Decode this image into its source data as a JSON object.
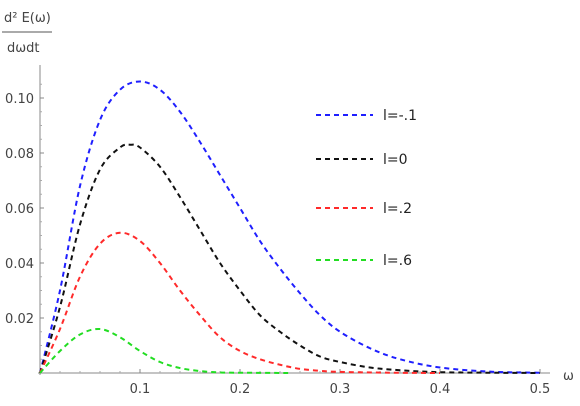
{
  "chart_data": {
    "type": "line",
    "ylabel_top": "d² E(ω)",
    "ylabel_bottom": "dωdt",
    "xlabel": "ω",
    "xlim": [
      0,
      0.5
    ],
    "ylim": [
      0,
      0.112
    ],
    "xticks": [
      0.1,
      0.2,
      0.3,
      0.4,
      0.5
    ],
    "xtick_labels": [
      "0.1",
      "0.2",
      "0.3",
      "0.4",
      "0.5"
    ],
    "yticks": [
      0.02,
      0.04,
      0.06,
      0.08,
      0.1
    ],
    "ytick_labels": [
      "0.02",
      "0.04",
      "0.06",
      "0.08",
      "0.10"
    ],
    "grid": false,
    "legend_position": "right",
    "series": [
      {
        "name": "l=-.1",
        "color": "#1f1fff",
        "x": [
          0,
          0.02,
          0.04,
          0.06,
          0.08,
          0.1,
          0.12,
          0.14,
          0.16,
          0.18,
          0.2,
          0.22,
          0.24,
          0.26,
          0.28,
          0.3,
          0.33,
          0.36,
          0.4,
          0.45,
          0.5
        ],
        "y": [
          0,
          0.03,
          0.068,
          0.092,
          0.103,
          0.106,
          0.103,
          0.095,
          0.084,
          0.072,
          0.06,
          0.048,
          0.038,
          0.029,
          0.021,
          0.015,
          0.009,
          0.005,
          0.002,
          0.0005,
          0.0001
        ]
      },
      {
        "name": "l=0",
        "color": "#111111",
        "x": [
          0,
          0.02,
          0.04,
          0.06,
          0.08,
          0.09,
          0.1,
          0.12,
          0.14,
          0.16,
          0.18,
          0.2,
          0.22,
          0.24,
          0.26,
          0.28,
          0.3,
          0.33,
          0.36,
          0.4,
          0.45,
          0.5
        ],
        "y": [
          0,
          0.024,
          0.054,
          0.074,
          0.082,
          0.083,
          0.082,
          0.075,
          0.064,
          0.052,
          0.04,
          0.03,
          0.021,
          0.015,
          0.01,
          0.006,
          0.004,
          0.002,
          0.001,
          0.0003,
          0.0001,
          0
        ]
      },
      {
        "name": "l=.2",
        "color": "#ff2a2a",
        "x": [
          0,
          0.02,
          0.04,
          0.06,
          0.08,
          0.1,
          0.12,
          0.14,
          0.16,
          0.18,
          0.2,
          0.22,
          0.24,
          0.26,
          0.28,
          0.3,
          0.35,
          0.4
        ],
        "y": [
          0,
          0.016,
          0.035,
          0.047,
          0.051,
          0.048,
          0.04,
          0.03,
          0.021,
          0.013,
          0.008,
          0.005,
          0.003,
          0.0015,
          0.0008,
          0.0004,
          0.0001,
          0
        ]
      },
      {
        "name": "l=.6",
        "color": "#22dd22",
        "x": [
          0,
          0.02,
          0.04,
          0.06,
          0.08,
          0.1,
          0.12,
          0.14,
          0.16,
          0.18,
          0.2,
          0.25
        ],
        "y": [
          0,
          0.008,
          0.014,
          0.016,
          0.013,
          0.008,
          0.004,
          0.0018,
          0.0007,
          0.0002,
          0.0001,
          0
        ]
      }
    ]
  }
}
